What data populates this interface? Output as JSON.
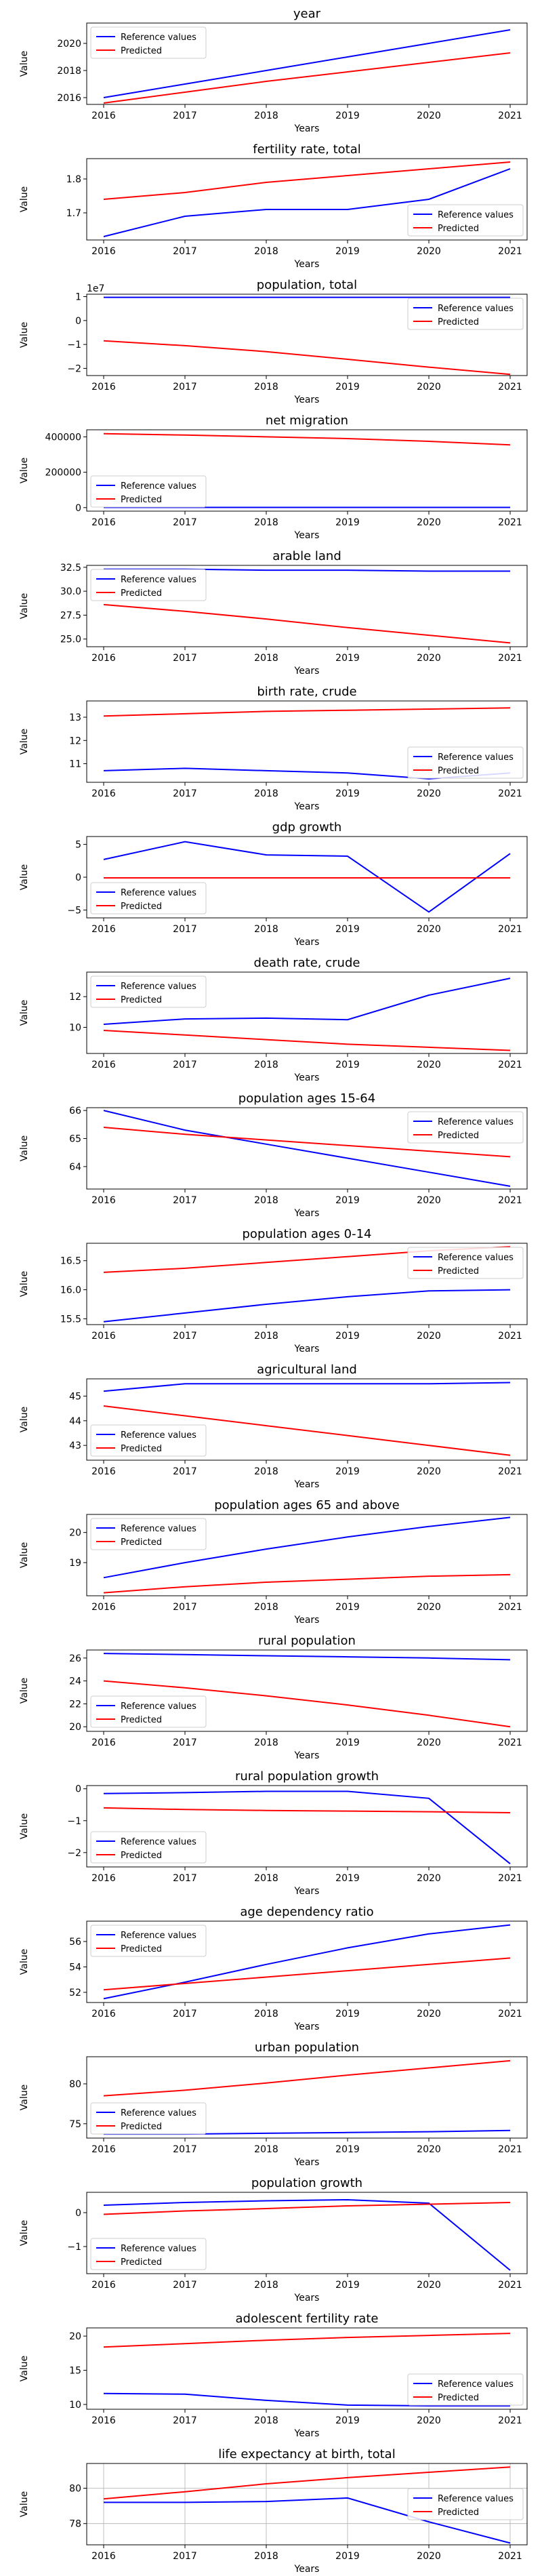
{
  "legend": {
    "reference": "Reference values",
    "predicted": "Predicted"
  },
  "colors": {
    "reference": "#0000ff",
    "predicted": "#ff0000"
  },
  "chart_data": [
    {
      "type": "line",
      "title": "year",
      "xlabel": "Years",
      "ylabel": "Value",
      "x": [
        "2016",
        "2017",
        "2018",
        "2019",
        "2020",
        "2021"
      ],
      "yticks": [
        "2016",
        "2018",
        "2020"
      ],
      "ylim": [
        2015.5,
        2021.5
      ],
      "legend": "top-left",
      "grid": false,
      "series": [
        {
          "name": "Reference values",
          "color": "#0000ff",
          "values": [
            2016,
            2017,
            2018,
            2019,
            2020,
            2021
          ]
        },
        {
          "name": "Predicted",
          "color": "#ff0000",
          "values": [
            2015.6,
            2016.4,
            2017.2,
            2017.9,
            2018.6,
            2019.3
          ]
        }
      ]
    },
    {
      "type": "line",
      "title": "fertility rate, total",
      "xlabel": "Years",
      "ylabel": "Value",
      "x": [
        "2016",
        "2017",
        "2018",
        "2019",
        "2020",
        "2021"
      ],
      "yticks": [
        "1.7",
        "1.8"
      ],
      "ylim": [
        1.62,
        1.86
      ],
      "legend": "bottom-right",
      "grid": false,
      "series": [
        {
          "name": "Reference values",
          "color": "#0000ff",
          "values": [
            1.63,
            1.69,
            1.71,
            1.71,
            1.74,
            1.83
          ]
        },
        {
          "name": "Predicted",
          "color": "#ff0000",
          "values": [
            1.74,
            1.76,
            1.79,
            1.81,
            1.83,
            1.85
          ]
        }
      ]
    },
    {
      "type": "line",
      "title": "population, total",
      "xlabel": "Years",
      "ylabel": "Value",
      "x": [
        "2016",
        "2017",
        "2018",
        "2019",
        "2020",
        "2021"
      ],
      "yticks": [
        "−2",
        "−1",
        "0",
        "1"
      ],
      "yscale_label": "1e7",
      "ylim": [
        -2.3,
        1.1
      ],
      "legend": "top-right",
      "grid": false,
      "series": [
        {
          "name": "Reference values",
          "color": "#0000ff",
          "values": [
            0.97,
            0.97,
            0.97,
            0.97,
            0.97,
            0.97
          ]
        },
        {
          "name": "Predicted",
          "color": "#ff0000",
          "values": [
            -0.85,
            -1.05,
            -1.3,
            -1.62,
            -1.95,
            -2.25
          ]
        }
      ]
    },
    {
      "type": "line",
      "title": "net migration",
      "xlabel": "Years",
      "ylabel": "Value",
      "x": [
        "2016",
        "2017",
        "2018",
        "2019",
        "2020",
        "2021"
      ],
      "yticks": [
        "0",
        "200000",
        "400000"
      ],
      "ylim": [
        -20000,
        440000
      ],
      "legend": "bottom-left",
      "grid": false,
      "series": [
        {
          "name": "Reference values",
          "color": "#0000ff",
          "values": [
            1000,
            1000,
            1000,
            1000,
            1000,
            1000
          ]
        },
        {
          "name": "Predicted",
          "color": "#ff0000",
          "values": [
            418000,
            410000,
            400000,
            390000,
            375000,
            355000
          ]
        }
      ]
    },
    {
      "type": "line",
      "title": "arable land",
      "xlabel": "Years",
      "ylabel": "Value",
      "x": [
        "2016",
        "2017",
        "2018",
        "2019",
        "2020",
        "2021"
      ],
      "yticks": [
        "25.0",
        "27.5",
        "30.0",
        "32.5"
      ],
      "ylim": [
        24.2,
        32.7
      ],
      "legend": "top-left",
      "grid": false,
      "series": [
        {
          "name": "Reference values",
          "color": "#0000ff",
          "values": [
            32.3,
            32.3,
            32.2,
            32.2,
            32.1,
            32.1
          ]
        },
        {
          "name": "Predicted",
          "color": "#ff0000",
          "values": [
            28.6,
            27.9,
            27.1,
            26.2,
            25.4,
            24.6
          ]
        }
      ]
    },
    {
      "type": "line",
      "title": "birth rate, crude",
      "xlabel": "Years",
      "ylabel": "Value",
      "x": [
        "2016",
        "2017",
        "2018",
        "2019",
        "2020",
        "2021"
      ],
      "yticks": [
        "11",
        "12",
        "13"
      ],
      "ylim": [
        10.2,
        13.7
      ],
      "legend": "bottom-right",
      "grid": false,
      "series": [
        {
          "name": "Reference values",
          "color": "#0000ff",
          "values": [
            10.7,
            10.8,
            10.7,
            10.6,
            10.35,
            10.6
          ]
        },
        {
          "name": "Predicted",
          "color": "#ff0000",
          "values": [
            13.05,
            13.15,
            13.25,
            13.3,
            13.35,
            13.4
          ]
        }
      ]
    },
    {
      "type": "line",
      "title": "gdp growth",
      "xlabel": "Years",
      "ylabel": "Value",
      "x": [
        "2016",
        "2017",
        "2018",
        "2019",
        "2020",
        "2021"
      ],
      "yticks": [
        "−5",
        "0",
        "5"
      ],
      "ylim": [
        -6.2,
        6.2
      ],
      "legend": "bottom-left",
      "grid": false,
      "series": [
        {
          "name": "Reference values",
          "color": "#0000ff",
          "values": [
            2.7,
            5.4,
            3.4,
            3.2,
            -5.3,
            3.6
          ]
        },
        {
          "name": "Predicted",
          "color": "#ff0000",
          "values": [
            -0.1,
            -0.1,
            -0.1,
            -0.1,
            -0.1,
            -0.1
          ]
        }
      ]
    },
    {
      "type": "line",
      "title": "death rate, crude",
      "xlabel": "Years",
      "ylabel": "Value",
      "x": [
        "2016",
        "2017",
        "2018",
        "2019",
        "2020",
        "2021"
      ],
      "yticks": [
        "10",
        "12"
      ],
      "ylim": [
        8.3,
        13.6
      ],
      "legend": "top-left",
      "grid": false,
      "series": [
        {
          "name": "Reference values",
          "color": "#0000ff",
          "values": [
            10.2,
            10.55,
            10.6,
            10.5,
            12.1,
            13.2
          ]
        },
        {
          "name": "Predicted",
          "color": "#ff0000",
          "values": [
            9.8,
            9.5,
            9.2,
            8.9,
            8.7,
            8.5
          ]
        }
      ]
    },
    {
      "type": "line",
      "title": "population ages 15-64",
      "xlabel": "Years",
      "ylabel": "Value",
      "x": [
        "2016",
        "2017",
        "2018",
        "2019",
        "2020",
        "2021"
      ],
      "yticks": [
        "64",
        "65",
        "66"
      ],
      "ylim": [
        63.2,
        66.1
      ],
      "legend": "top-right",
      "grid": false,
      "series": [
        {
          "name": "Reference values",
          "color": "#0000ff",
          "values": [
            66.0,
            65.3,
            64.8,
            64.3,
            63.8,
            63.3
          ]
        },
        {
          "name": "Predicted",
          "color": "#ff0000",
          "values": [
            65.4,
            65.15,
            64.95,
            64.75,
            64.55,
            64.35
          ]
        }
      ]
    },
    {
      "type": "line",
      "title": "population ages 0-14",
      "xlabel": "Years",
      "ylabel": "Value",
      "x": [
        "2016",
        "2017",
        "2018",
        "2019",
        "2020",
        "2021"
      ],
      "yticks": [
        "15.5",
        "16.0",
        "16.5"
      ],
      "ylim": [
        15.4,
        16.8
      ],
      "legend": "top-right",
      "grid": false,
      "series": [
        {
          "name": "Reference values",
          "color": "#0000ff",
          "values": [
            15.45,
            15.6,
            15.75,
            15.88,
            15.98,
            16.0
          ]
        },
        {
          "name": "Predicted",
          "color": "#ff0000",
          "values": [
            16.3,
            16.37,
            16.47,
            16.57,
            16.67,
            16.74
          ]
        }
      ]
    },
    {
      "type": "line",
      "title": "agricultural land",
      "xlabel": "Years",
      "ylabel": "Value",
      "x": [
        "2016",
        "2017",
        "2018",
        "2019",
        "2020",
        "2021"
      ],
      "yticks": [
        "43",
        "44",
        "45"
      ],
      "ylim": [
        42.4,
        45.7
      ],
      "legend": "bottom-left",
      "grid": false,
      "series": [
        {
          "name": "Reference values",
          "color": "#0000ff",
          "values": [
            45.2,
            45.5,
            45.5,
            45.5,
            45.5,
            45.55
          ]
        },
        {
          "name": "Predicted",
          "color": "#ff0000",
          "values": [
            44.6,
            44.2,
            43.8,
            43.4,
            43.0,
            42.6
          ]
        }
      ]
    },
    {
      "type": "line",
      "title": "population ages 65 and above",
      "xlabel": "Years",
      "ylabel": "Value",
      "x": [
        "2016",
        "2017",
        "2018",
        "2019",
        "2020",
        "2021"
      ],
      "yticks": [
        "19",
        "20"
      ],
      "ylim": [
        17.9,
        20.6
      ],
      "legend": "top-left",
      "grid": false,
      "series": [
        {
          "name": "Reference values",
          "color": "#0000ff",
          "values": [
            18.5,
            19.0,
            19.45,
            19.85,
            20.2,
            20.5
          ]
        },
        {
          "name": "Predicted",
          "color": "#ff0000",
          "values": [
            18.0,
            18.2,
            18.35,
            18.45,
            18.55,
            18.6
          ]
        }
      ]
    },
    {
      "type": "line",
      "title": "rural population",
      "xlabel": "Years",
      "ylabel": "Value",
      "x": [
        "2016",
        "2017",
        "2018",
        "2019",
        "2020",
        "2021"
      ],
      "yticks": [
        "20",
        "22",
        "24",
        "26"
      ],
      "ylim": [
        19.6,
        26.7
      ],
      "legend": "bottom-left",
      "grid": false,
      "series": [
        {
          "name": "Reference values",
          "color": "#0000ff",
          "values": [
            26.4,
            26.3,
            26.2,
            26.1,
            26.0,
            25.85
          ]
        },
        {
          "name": "Predicted",
          "color": "#ff0000",
          "values": [
            24.0,
            23.4,
            22.7,
            21.9,
            21.0,
            20.0
          ]
        }
      ]
    },
    {
      "type": "line",
      "title": "rural population growth",
      "xlabel": "Years",
      "ylabel": "Value",
      "x": [
        "2016",
        "2017",
        "2018",
        "2019",
        "2020",
        "2021"
      ],
      "yticks": [
        "−2",
        "−1",
        "0"
      ],
      "ylim": [
        -2.45,
        0.1
      ],
      "legend": "bottom-left",
      "grid": false,
      "series": [
        {
          "name": "Reference values",
          "color": "#0000ff",
          "values": [
            -0.15,
            -0.12,
            -0.08,
            -0.08,
            -0.3,
            -2.35
          ]
        },
        {
          "name": "Predicted",
          "color": "#ff0000",
          "values": [
            -0.6,
            -0.65,
            -0.68,
            -0.7,
            -0.72,
            -0.75
          ]
        }
      ]
    },
    {
      "type": "line",
      "title": "age dependency ratio",
      "xlabel": "Years",
      "ylabel": "Value",
      "x": [
        "2016",
        "2017",
        "2018",
        "2019",
        "2020",
        "2021"
      ],
      "yticks": [
        "52",
        "54",
        "56"
      ],
      "ylim": [
        51.2,
        57.6
      ],
      "legend": "top-left",
      "grid": false,
      "series": [
        {
          "name": "Reference values",
          "color": "#0000ff",
          "values": [
            51.5,
            52.8,
            54.2,
            55.5,
            56.6,
            57.3
          ]
        },
        {
          "name": "Predicted",
          "color": "#ff0000",
          "values": [
            52.2,
            52.7,
            53.2,
            53.7,
            54.2,
            54.7
          ]
        }
      ]
    },
    {
      "type": "line",
      "title": "urban population",
      "xlabel": "Years",
      "ylabel": "Value",
      "x": [
        "2016",
        "2017",
        "2018",
        "2019",
        "2020",
        "2021"
      ],
      "yticks": [
        "75",
        "80"
      ],
      "ylim": [
        73.2,
        83.4
      ],
      "legend": "bottom-left",
      "grid": false,
      "series": [
        {
          "name": "Reference values",
          "color": "#0000ff",
          "values": [
            73.7,
            73.7,
            73.8,
            73.9,
            74.0,
            74.15
          ]
        },
        {
          "name": "Predicted",
          "color": "#ff0000",
          "values": [
            78.5,
            79.2,
            80.1,
            81.1,
            82.0,
            82.9
          ]
        }
      ]
    },
    {
      "type": "line",
      "title": "population growth",
      "xlabel": "Years",
      "ylabel": "Value",
      "x": [
        "2016",
        "2017",
        "2018",
        "2019",
        "2020",
        "2021"
      ],
      "yticks": [
        "−1",
        "0"
      ],
      "ylim": [
        -1.8,
        0.6
      ],
      "legend": "bottom-left",
      "grid": false,
      "series": [
        {
          "name": "Reference values",
          "color": "#0000ff",
          "values": [
            0.22,
            0.3,
            0.35,
            0.38,
            0.28,
            -1.7
          ]
        },
        {
          "name": "Predicted",
          "color": "#ff0000",
          "values": [
            -0.05,
            0.05,
            0.12,
            0.2,
            0.25,
            0.3
          ]
        }
      ]
    },
    {
      "type": "line",
      "title": "adolescent fertility rate",
      "xlabel": "Years",
      "ylabel": "Value",
      "x": [
        "2016",
        "2017",
        "2018",
        "2019",
        "2020",
        "2021"
      ],
      "yticks": [
        "10",
        "15",
        "20"
      ],
      "ylim": [
        9.3,
        21.2
      ],
      "legend": "bottom-right",
      "grid": false,
      "series": [
        {
          "name": "Reference values",
          "color": "#0000ff",
          "values": [
            11.6,
            11.5,
            10.6,
            9.9,
            9.8,
            9.8
          ]
        },
        {
          "name": "Predicted",
          "color": "#ff0000",
          "values": [
            18.4,
            18.9,
            19.4,
            19.8,
            20.1,
            20.4
          ]
        }
      ]
    },
    {
      "type": "line",
      "title": "life expectancy at birth, total",
      "xlabel": "Years",
      "ylabel": "Value",
      "x": [
        "2016",
        "2017",
        "2018",
        "2019",
        "2020",
        "2021"
      ],
      "yticks": [
        "78",
        "80"
      ],
      "ylim": [
        76.8,
        81.4
      ],
      "legend": "center-right",
      "grid": true,
      "series": [
        {
          "name": "Reference values",
          "color": "#0000ff",
          "values": [
            79.2,
            79.2,
            79.25,
            79.45,
            78.1,
            76.9
          ]
        },
        {
          "name": "Predicted",
          "color": "#ff0000",
          "values": [
            79.4,
            79.8,
            80.25,
            80.6,
            80.9,
            81.2
          ]
        }
      ]
    }
  ]
}
